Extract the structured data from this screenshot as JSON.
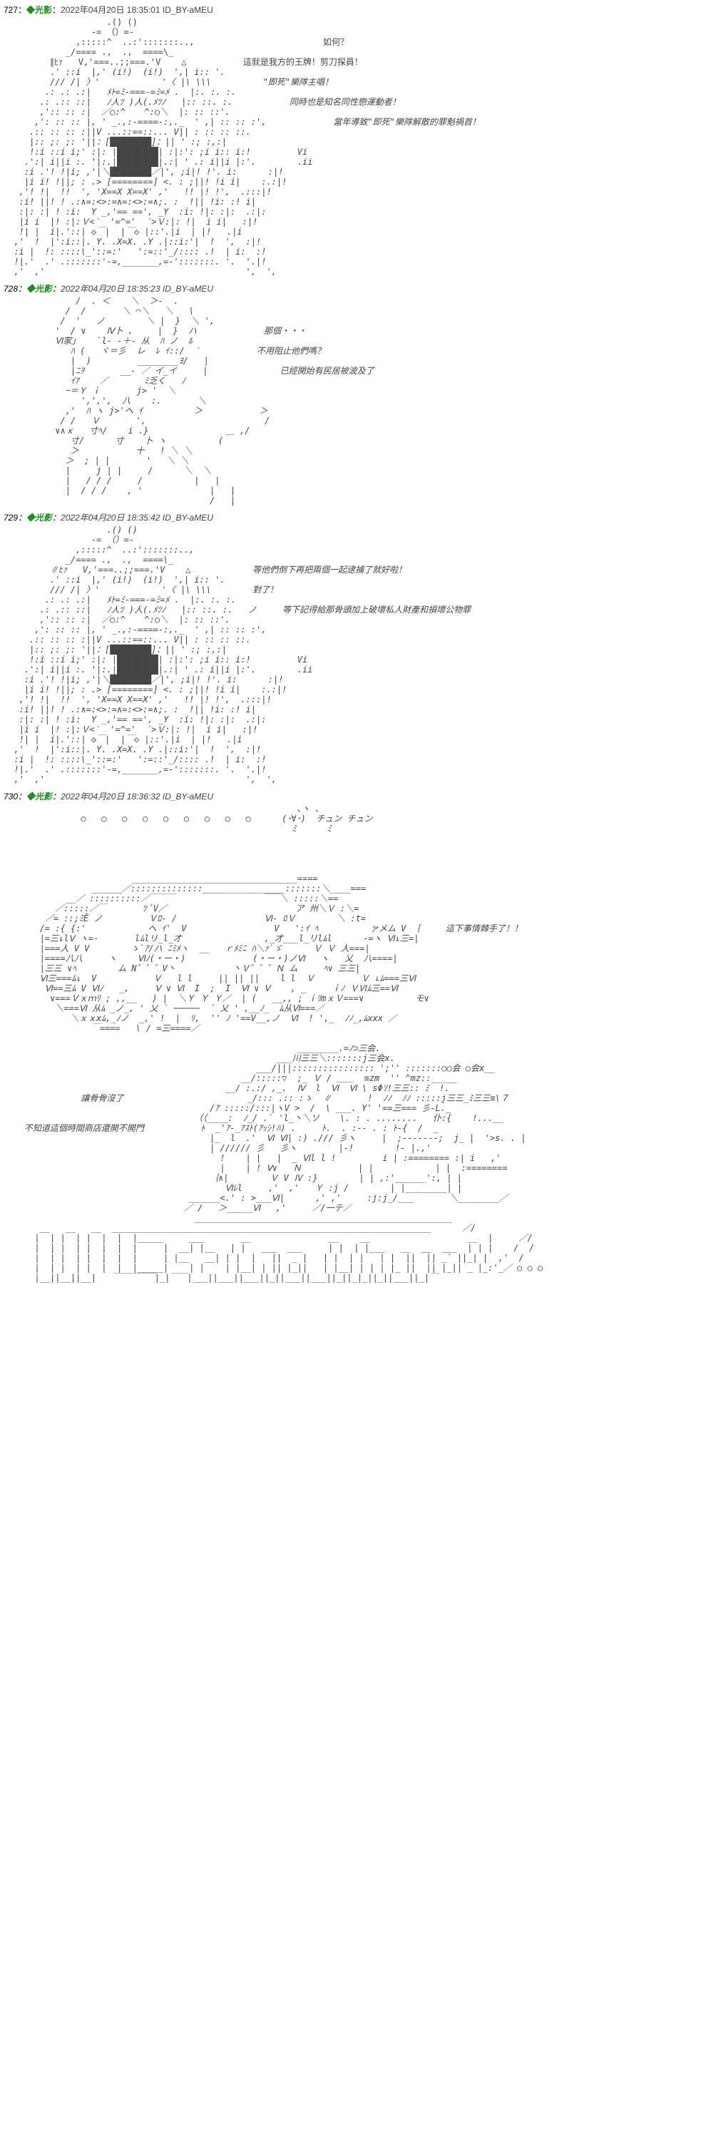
{
  "posts": [
    {
      "num": "727",
      "author": "◆光影",
      "date": "2022年04月20日 18:35:01",
      "id": "ID_BY-aMEU",
      "dialogue": [
        "如何？",
        "這就是我方的王牌！剪刀探員！",
        "\"即死\"樂隊主唱！",
        "同時也是知名同性戀運動者！",
        "當年導致\"即死\"樂隊解散的罪魁禍首！"
      ]
    },
    {
      "num": "728",
      "author": "◆光影",
      "date": "2022年04月20日 18:35:23",
      "id": "ID_BY-aMEU",
      "dialogue": [
        "那個・・・",
        "不用阻止他們嗎？",
        "已經開始有民居被波及了"
      ]
    },
    {
      "num": "729",
      "author": "◆光影",
      "date": "2022年04月20日 18:35:42",
      "id": "ID_BY-aMEU",
      "dialogue": [
        "等他們倒下再把兩個一起逮捕了就好啦！",
        "對了！",
        "等下記得給那骨頭加上破壞私人財產和損壞公物罪"
      ]
    },
    {
      "num": "730",
      "author": "◆光影",
      "date": "2022年04月20日 18:36:32",
      "id": "ID_BY-aMEU",
      "dialogue": [
        "チュン チュン",
        "這下事情棘手了！！",
        "讓骨骨沒了",
        "不知道這個時間商店還開不開門"
      ]
    }
  ]
}
